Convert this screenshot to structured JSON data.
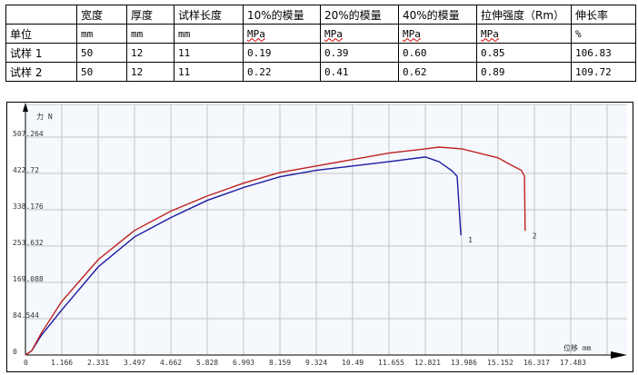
{
  "table": {
    "headers": [
      "",
      "宽度",
      "厚度",
      "试样长度",
      "10%的模量",
      "20%的模量",
      "40%的模量",
      "拉伸强度（Rm）",
      "伸长率"
    ],
    "rows": [
      [
        "单位",
        "mm",
        "mm",
        "mm",
        "MPa",
        "MPa",
        "MPa",
        "MPa",
        "%"
      ],
      [
        "试样 1",
        "50",
        "12",
        "11",
        "0.19",
        "0.39",
        "0.60",
        "0.85",
        "106.83"
      ],
      [
        "试样 2",
        "50",
        "12",
        "11",
        "0.22",
        "0.41",
        "0.62",
        "0.89",
        "109.72"
      ]
    ]
  },
  "chart_data": {
    "type": "line",
    "ylabel": "力 N",
    "xlabel": "位移 mm",
    "x_ticks": [
      "0",
      "1.166",
      "2.331",
      "3.497",
      "4.662",
      "5.828",
      "6.993",
      "8.159",
      "9.324",
      "10.49",
      "11.655",
      "12.821",
      "13.986",
      "15.152",
      "16.317",
      "17.483"
    ],
    "y_ticks": [
      "0",
      "84.544",
      "169.088",
      "253.632",
      "338.176",
      "422.72",
      "507.264"
    ],
    "xlim": [
      0,
      18.65
    ],
    "ylim": [
      0,
      560
    ],
    "grid": true,
    "series": [
      {
        "name": "1",
        "color": "#1a1aa0",
        "x": [
          0,
          0.2,
          0.5,
          1.166,
          2.331,
          3.497,
          4.662,
          5.828,
          6.993,
          8.159,
          9.324,
          10.49,
          11.655,
          12.821,
          13.26,
          13.67,
          13.84,
          13.96
        ],
        "y": [
          0,
          10,
          45,
          105,
          205,
          275,
          320,
          360,
          390,
          415,
          430,
          440,
          450,
          461,
          450,
          429,
          416,
          279
        ]
      },
      {
        "name": "2",
        "color": "#c02020",
        "x": [
          0,
          0.2,
          0.5,
          1.166,
          2.331,
          3.497,
          4.662,
          5.828,
          6.993,
          8.159,
          9.324,
          10.49,
          11.655,
          12.821,
          13.26,
          13.986,
          15.152,
          15.5,
          15.9,
          16.0,
          16.02
        ],
        "y": [
          0,
          10,
          50,
          125,
          222,
          290,
          335,
          370,
          400,
          425,
          440,
          455,
          470,
          480,
          484,
          480,
          459,
          445,
          430,
          416,
          289
        ]
      }
    ]
  }
}
